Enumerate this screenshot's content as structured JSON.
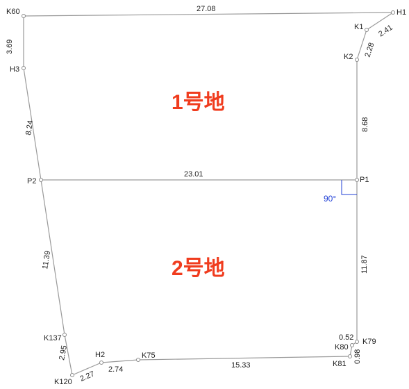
{
  "colors": {
    "parcel_label": "#f03c1e",
    "angle": "#1f3fd6",
    "line": "#9a9a9a"
  },
  "parcels": [
    {
      "label": "1号地"
    },
    {
      "label": "2号地"
    }
  ],
  "right_angle": {
    "label": "90°"
  },
  "points": {
    "K60": "K60",
    "H1": "H1",
    "K1": "K1",
    "K2": "K2",
    "H3": "H3",
    "P2": "P2",
    "P1": "P1",
    "K137": "K137",
    "K120": "K120",
    "H2": "H2",
    "K75": "K75",
    "K81": "K81",
    "K80": "K80",
    "K79": "K79"
  },
  "lengths": {
    "K60_H1": "27.08",
    "H1_K1": "2.41",
    "K1_K2": "2.28",
    "K2_P1": "8.68",
    "K60_H3": "3.69",
    "H3_P2": "8.24",
    "P2_P1": "23.01",
    "P2_K137": "11.39",
    "P1_K79": "11.87",
    "K137_K120": "2.95",
    "K120_H2": "2.27",
    "H2_K75": "2.74",
    "K75_K81": "15.33",
    "K79_K80": "0.52",
    "K80_K81": "0.98"
  }
}
